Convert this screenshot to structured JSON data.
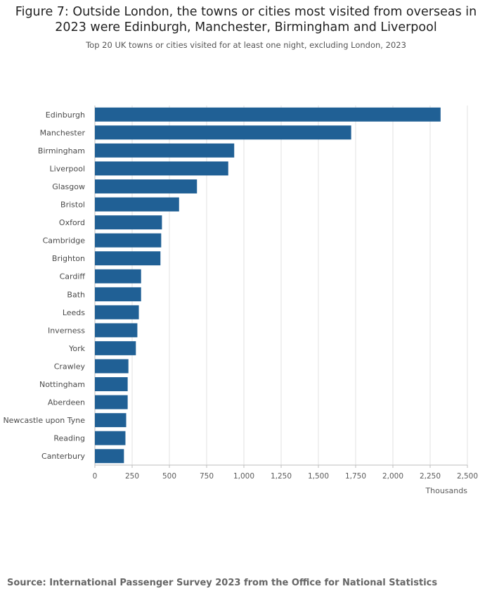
{
  "chart_data": {
    "type": "bar",
    "orientation": "horizontal",
    "title": "Figure 7: Outside London, the towns or cities most visited from overseas in 2023 were Edinburgh, Manchester, Birmingham and Liverpool",
    "subtitle": "Top 20 UK towns or cities visited for at least one night, excluding London, 2023",
    "xlabel": "Thousands",
    "ylabel": "",
    "categories": [
      "Edinburgh",
      "Manchester",
      "Birmingham",
      "Liverpool",
      "Glasgow",
      "Bristol",
      "Oxford",
      "Cambridge",
      "Brighton",
      "Cardiff",
      "Bath",
      "Leeds",
      "Inverness",
      "York",
      "Crawley",
      "Nottingham",
      "Aberdeen",
      "Newcastle upon Tyne",
      "Reading",
      "Canterbury"
    ],
    "values": [
      2320,
      1720,
      935,
      895,
      685,
      565,
      450,
      445,
      440,
      310,
      310,
      295,
      285,
      275,
      225,
      220,
      220,
      210,
      205,
      195
    ],
    "xlim": [
      0,
      2500
    ],
    "xticks": [
      0,
      250,
      500,
      750,
      1000,
      1250,
      1500,
      1750,
      2000,
      2250,
      2500
    ],
    "xtick_labels": [
      "0",
      "250",
      "500",
      "750",
      "1,000",
      "1,250",
      "1,500",
      "1,750",
      "2,000",
      "2,250",
      "2,500"
    ],
    "grid": "vertical",
    "bar_color": "#206095"
  },
  "source": "Source: International Passenger Survey 2023 from the Office for National Statistics"
}
